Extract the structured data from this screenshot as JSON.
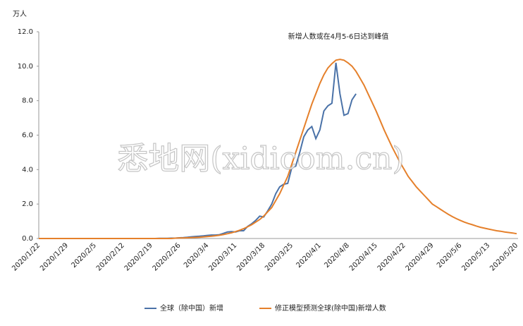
{
  "chart_data": {
    "type": "line",
    "y_unit": "万人",
    "annotation": "新增人数或在4月5-6日达到峰值",
    "watermark": "悉地网(xidicom.cn)",
    "categories": [
      "2020/1/22",
      null,
      null,
      null,
      null,
      null,
      null,
      "2020/1/29",
      null,
      null,
      null,
      null,
      null,
      null,
      "2020/2/5",
      null,
      null,
      null,
      null,
      null,
      null,
      "2020/2/12",
      null,
      null,
      null,
      null,
      null,
      null,
      "2020/2/19",
      null,
      null,
      null,
      null,
      null,
      null,
      "2020/2/26",
      null,
      null,
      null,
      null,
      null,
      null,
      "2020/3/4",
      null,
      null,
      null,
      null,
      null,
      null,
      "2020/3/11",
      null,
      null,
      null,
      null,
      null,
      null,
      "2020/3/18",
      null,
      null,
      null,
      null,
      null,
      null,
      "2020/3/25",
      null,
      null,
      null,
      null,
      null,
      null,
      "2020/4/1",
      null,
      null,
      null,
      null,
      null,
      null,
      "2020/4/8",
      null,
      null,
      null,
      null,
      null,
      null,
      "2020/4/15",
      null,
      null,
      null,
      null,
      null,
      null,
      "2020/4/22",
      null,
      null,
      null,
      null,
      null,
      null,
      "2020/4/29",
      null,
      null,
      null,
      null,
      null,
      null,
      "2020/5/6",
      null,
      null,
      null,
      null,
      null,
      null,
      "2020/5/13",
      null,
      null,
      null,
      null,
      null,
      null,
      "2020/5/20"
    ],
    "series": [
      {
        "name": "全球（除中国）新增",
        "color": "#4a72a8",
        "values": [
          0,
          0,
          0,
          0,
          0,
          0,
          0,
          0,
          0,
          0,
          0,
          0,
          0,
          0,
          0,
          0,
          0,
          0,
          0,
          0,
          0,
          0,
          0,
          0,
          0,
          0,
          0,
          0,
          0,
          0,
          0.01,
          0.01,
          0.01,
          0.02,
          0.02,
          0.04,
          0.05,
          0.07,
          0.1,
          0.12,
          0.13,
          0.15,
          0.18,
          0.2,
          0.2,
          0.22,
          0.3,
          0.38,
          0.4,
          0.38,
          0.45,
          0.45,
          0.7,
          0.85,
          1.05,
          1.3,
          1.25,
          1.6,
          2.0,
          2.6,
          3.0,
          3.15,
          3.2,
          4.1,
          4.2,
          5.0,
          5.9,
          6.3,
          6.5,
          5.8,
          6.3,
          7.4,
          7.7,
          7.85,
          10.2,
          8.4,
          7.15,
          7.25,
          8.05,
          8.4,
          null,
          null,
          null,
          null,
          null,
          null,
          null,
          null,
          null,
          null,
          null,
          null,
          null,
          null,
          null,
          null,
          null,
          null,
          null,
          null,
          null,
          null,
          null,
          null,
          null,
          null,
          null,
          null,
          null,
          null,
          null,
          null,
          null,
          null,
          null,
          null,
          null,
          null,
          null,
          null
        ]
      },
      {
        "name": "修正模型预测全球(除中国)新增人数",
        "color": "#e5802b",
        "values": [
          0,
          0,
          0,
          0,
          0,
          0,
          0,
          0,
          0,
          0,
          0,
          0,
          0,
          0,
          0,
          0,
          0,
          0,
          0,
          0,
          0,
          0,
          0,
          0,
          0,
          0,
          0,
          0,
          0,
          0,
          0,
          0,
          0,
          0,
          0.02,
          0.03,
          0.03,
          0.04,
          0.05,
          0.06,
          0.07,
          0.09,
          0.11,
          0.13,
          0.16,
          0.19,
          0.23,
          0.28,
          0.33,
          0.4,
          0.48,
          0.57,
          0.68,
          0.8,
          0.95,
          1.1,
          1.3,
          1.55,
          1.8,
          2.2,
          2.6,
          3.1,
          3.6,
          4.3,
          5.0,
          5.7,
          6.4,
          7.1,
          7.8,
          8.4,
          9.0,
          9.5,
          9.9,
          10.15,
          10.35,
          10.4,
          10.35,
          10.2,
          10.0,
          9.7,
          9.3,
          8.9,
          8.4,
          7.9,
          7.4,
          6.85,
          6.3,
          5.8,
          5.3,
          4.85,
          4.4,
          4.0,
          3.6,
          3.3,
          3.0,
          2.75,
          2.5,
          2.25,
          2.0,
          1.85,
          1.7,
          1.55,
          1.4,
          1.27,
          1.15,
          1.05,
          0.95,
          0.87,
          0.8,
          0.72,
          0.65,
          0.6,
          0.55,
          0.5,
          0.45,
          0.42,
          0.38,
          0.35,
          0.32,
          0.28
        ]
      }
    ],
    "ylim": [
      0,
      12
    ],
    "yticks": [
      {
        "value": 0,
        "label": "0.0"
      },
      {
        "value": 2,
        "label": "2.0"
      },
      {
        "value": 4,
        "label": "4.0"
      },
      {
        "value": 6,
        "label": "6.0"
      },
      {
        "value": 8,
        "label": "8.0"
      },
      {
        "value": 10,
        "label": "10.0"
      },
      {
        "value": 12,
        "label": "12.0"
      }
    ],
    "grid": false
  }
}
